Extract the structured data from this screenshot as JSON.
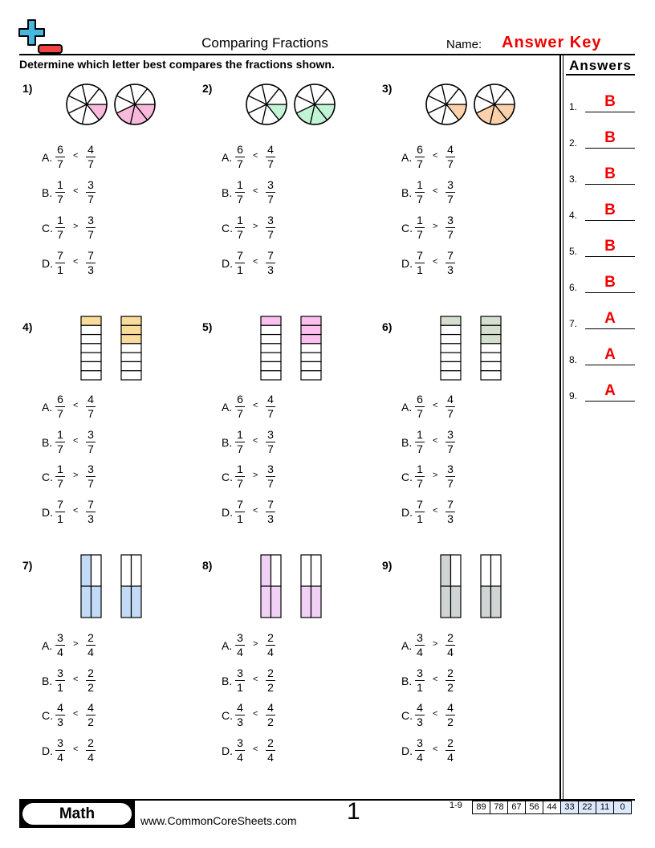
{
  "header": {
    "title": "Comparing Fractions",
    "name_label": "Name:",
    "answer_key": "Answer Key",
    "logo": "plus-minus-logo"
  },
  "instructions": "Determine which letter best compares the fractions shown.",
  "answers": {
    "title": "Answers",
    "items": [
      {
        "num": "1.",
        "letter": "B"
      },
      {
        "num": "2.",
        "letter": "B"
      },
      {
        "num": "3.",
        "letter": "B"
      },
      {
        "num": "4.",
        "letter": "B"
      },
      {
        "num": "5.",
        "letter": "B"
      },
      {
        "num": "6.",
        "letter": "B"
      },
      {
        "num": "7.",
        "letter": "A"
      },
      {
        "num": "8.",
        "letter": "A"
      },
      {
        "num": "9.",
        "letter": "A"
      }
    ]
  },
  "colors": {
    "answer_red": "#f00000",
    "pink": "#f9b9dd",
    "green": "#c2f5d5",
    "orange": "#fbd1ab",
    "yellow": "#f9dc9c",
    "bar_pink": "#fbc0ee",
    "bar_green": "#d4dfcf",
    "blue": "#c3dbf7",
    "lavender": "#f1d2f6",
    "grey": "#d1d4d4",
    "score_highlight": "#dce8fb"
  },
  "problems": [
    {
      "label": "1)",
      "model": "circle",
      "parts": 7,
      "shaded": [
        1,
        3
      ],
      "color": "#f9b9dd",
      "options": [
        {
          "letter": "A.",
          "a": [
            "6",
            "7"
          ],
          "sign": "<",
          "b": [
            "4",
            "7"
          ]
        },
        {
          "letter": "B.",
          "a": [
            "1",
            "7"
          ],
          "sign": "<",
          "b": [
            "3",
            "7"
          ]
        },
        {
          "letter": "C.",
          "a": [
            "1",
            "7"
          ],
          "sign": ">",
          "b": [
            "3",
            "7"
          ]
        },
        {
          "letter": "D.",
          "a": [
            "7",
            "1"
          ],
          "sign": "<",
          "b": [
            "7",
            "3"
          ]
        }
      ]
    },
    {
      "label": "2)",
      "model": "circle",
      "parts": 7,
      "shaded": [
        1,
        3
      ],
      "color": "#c2f5d5",
      "options": [
        {
          "letter": "A.",
          "a": [
            "6",
            "7"
          ],
          "sign": "<",
          "b": [
            "4",
            "7"
          ]
        },
        {
          "letter": "B.",
          "a": [
            "1",
            "7"
          ],
          "sign": "<",
          "b": [
            "3",
            "7"
          ]
        },
        {
          "letter": "C.",
          "a": [
            "1",
            "7"
          ],
          "sign": ">",
          "b": [
            "3",
            "7"
          ]
        },
        {
          "letter": "D.",
          "a": [
            "7",
            "1"
          ],
          "sign": "<",
          "b": [
            "7",
            "3"
          ]
        }
      ]
    },
    {
      "label": "3)",
      "model": "circle",
      "parts": 7,
      "shaded": [
        1,
        3
      ],
      "color": "#fbd1ab",
      "options": [
        {
          "letter": "A.",
          "a": [
            "6",
            "7"
          ],
          "sign": "<",
          "b": [
            "4",
            "7"
          ]
        },
        {
          "letter": "B.",
          "a": [
            "1",
            "7"
          ],
          "sign": "<",
          "b": [
            "3",
            "7"
          ]
        },
        {
          "letter": "C.",
          "a": [
            "1",
            "7"
          ],
          "sign": ">",
          "b": [
            "3",
            "7"
          ]
        },
        {
          "letter": "D.",
          "a": [
            "7",
            "1"
          ],
          "sign": "<",
          "b": [
            "7",
            "3"
          ]
        }
      ]
    },
    {
      "label": "4)",
      "model": "bar",
      "parts": 7,
      "shaded": [
        1,
        3
      ],
      "color": "#f9dc9c",
      "options": [
        {
          "letter": "A.",
          "a": [
            "6",
            "7"
          ],
          "sign": "<",
          "b": [
            "4",
            "7"
          ]
        },
        {
          "letter": "B.",
          "a": [
            "1",
            "7"
          ],
          "sign": "<",
          "b": [
            "3",
            "7"
          ]
        },
        {
          "letter": "C.",
          "a": [
            "1",
            "7"
          ],
          "sign": ">",
          "b": [
            "3",
            "7"
          ]
        },
        {
          "letter": "D.",
          "a": [
            "7",
            "1"
          ],
          "sign": "<",
          "b": [
            "7",
            "3"
          ]
        }
      ]
    },
    {
      "label": "5)",
      "model": "bar",
      "parts": 7,
      "shaded": [
        1,
        3
      ],
      "color": "#fbc0ee",
      "options": [
        {
          "letter": "A.",
          "a": [
            "6",
            "7"
          ],
          "sign": "<",
          "b": [
            "4",
            "7"
          ]
        },
        {
          "letter": "B.",
          "a": [
            "1",
            "7"
          ],
          "sign": "<",
          "b": [
            "3",
            "7"
          ]
        },
        {
          "letter": "C.",
          "a": [
            "1",
            "7"
          ],
          "sign": ">",
          "b": [
            "3",
            "7"
          ]
        },
        {
          "letter": "D.",
          "a": [
            "7",
            "1"
          ],
          "sign": "<",
          "b": [
            "7",
            "3"
          ]
        }
      ]
    },
    {
      "label": "6)",
      "model": "bar",
      "parts": 7,
      "shaded": [
        1,
        3
      ],
      "color": "#d4dfcf",
      "options": [
        {
          "letter": "A.",
          "a": [
            "6",
            "7"
          ],
          "sign": "<",
          "b": [
            "4",
            "7"
          ]
        },
        {
          "letter": "B.",
          "a": [
            "1",
            "7"
          ],
          "sign": "<",
          "b": [
            "3",
            "7"
          ]
        },
        {
          "letter": "C.",
          "a": [
            "1",
            "7"
          ],
          "sign": ">",
          "b": [
            "3",
            "7"
          ]
        },
        {
          "letter": "D.",
          "a": [
            "7",
            "1"
          ],
          "sign": "<",
          "b": [
            "7",
            "3"
          ]
        }
      ]
    },
    {
      "label": "7)",
      "model": "grid",
      "parts": 4,
      "shaded": [
        3,
        2
      ],
      "color": "#c3dbf7",
      "options": [
        {
          "letter": "A.",
          "a": [
            "3",
            "4"
          ],
          "sign": ">",
          "b": [
            "2",
            "4"
          ]
        },
        {
          "letter": "B.",
          "a": [
            "3",
            "1"
          ],
          "sign": "<",
          "b": [
            "2",
            "2"
          ]
        },
        {
          "letter": "C.",
          "a": [
            "4",
            "3"
          ],
          "sign": "<",
          "b": [
            "4",
            "2"
          ]
        },
        {
          "letter": "D.",
          "a": [
            "3",
            "4"
          ],
          "sign": "<",
          "b": [
            "2",
            "4"
          ]
        }
      ]
    },
    {
      "label": "8)",
      "model": "grid",
      "parts": 4,
      "shaded": [
        3,
        2
      ],
      "color": "#f1d2f6",
      "options": [
        {
          "letter": "A.",
          "a": [
            "3",
            "4"
          ],
          "sign": ">",
          "b": [
            "2",
            "4"
          ]
        },
        {
          "letter": "B.",
          "a": [
            "3",
            "1"
          ],
          "sign": "<",
          "b": [
            "2",
            "2"
          ]
        },
        {
          "letter": "C.",
          "a": [
            "4",
            "3"
          ],
          "sign": "<",
          "b": [
            "4",
            "2"
          ]
        },
        {
          "letter": "D.",
          "a": [
            "3",
            "4"
          ],
          "sign": "<",
          "b": [
            "2",
            "4"
          ]
        }
      ]
    },
    {
      "label": "9)",
      "model": "grid",
      "parts": 4,
      "shaded": [
        3,
        2
      ],
      "color": "#d1d4d4",
      "options": [
        {
          "letter": "A.",
          "a": [
            "3",
            "4"
          ],
          "sign": ">",
          "b": [
            "2",
            "4"
          ]
        },
        {
          "letter": "B.",
          "a": [
            "3",
            "1"
          ],
          "sign": "<",
          "b": [
            "2",
            "2"
          ]
        },
        {
          "letter": "C.",
          "a": [
            "4",
            "3"
          ],
          "sign": "<",
          "b": [
            "4",
            "2"
          ]
        },
        {
          "letter": "D.",
          "a": [
            "3",
            "4"
          ],
          "sign": "<",
          "b": [
            "2",
            "4"
          ]
        }
      ]
    }
  ],
  "footer": {
    "subject": "Math",
    "website": "www.CommonCoreSheets.com",
    "page": "1",
    "score_range": "1-9",
    "scores": [
      "89",
      "78",
      "67",
      "56",
      "44",
      "33",
      "22",
      "11",
      "0"
    ],
    "highlighted_from": 5
  }
}
